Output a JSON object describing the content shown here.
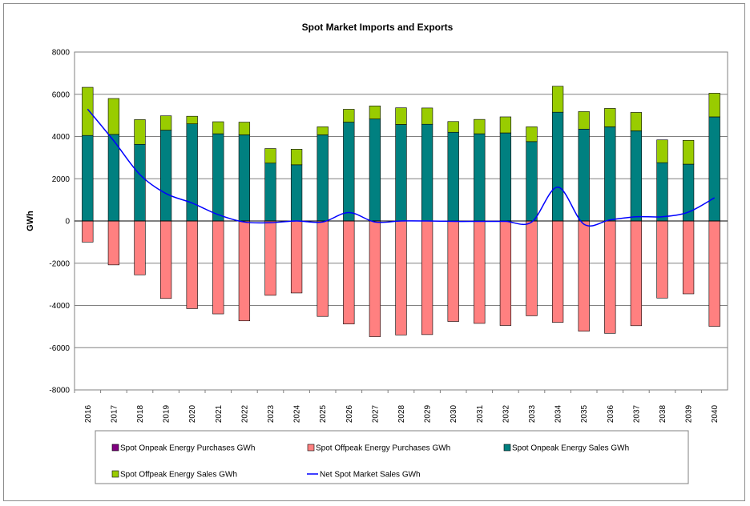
{
  "chart_data": {
    "type": "bar",
    "title": "Spot Market Imports and Exports",
    "xlabel": "",
    "ylabel": "GWh",
    "ylim": [
      -8000,
      8000
    ],
    "yticks": [
      8000,
      6000,
      4000,
      2000,
      0,
      -2000,
      -4000,
      -6000,
      -8000
    ],
    "grid": true,
    "legend_position": "bottom",
    "categories": [
      "2016",
      "2017",
      "2018",
      "2019",
      "2020",
      "2021",
      "2022",
      "2023",
      "2024",
      "2025",
      "2026",
      "2027",
      "2028",
      "2029",
      "2030",
      "2031",
      "2032",
      "2033",
      "2034",
      "2035",
      "2036",
      "2037",
      "2038",
      "2039",
      "2040"
    ],
    "series": [
      {
        "name": "Spot Onpeak Energy Purchases GWh",
        "kind": "bar",
        "color": "#800080",
        "values": [
          0,
          0,
          0,
          0,
          0,
          0,
          0,
          0,
          0,
          0,
          0,
          0,
          0,
          0,
          0,
          0,
          0,
          0,
          0,
          0,
          0,
          0,
          0,
          0,
          0
        ]
      },
      {
        "name": "Spot Offpeak Energy Purchases GWh",
        "kind": "bar",
        "color": "#ff8080",
        "values": [
          -1000,
          -2080,
          -2550,
          -3670,
          -4150,
          -4400,
          -4730,
          -3520,
          -3410,
          -4520,
          -4880,
          -5480,
          -5400,
          -5380,
          -4760,
          -4850,
          -4950,
          -4490,
          -4800,
          -5220,
          -5320,
          -4960,
          -3650,
          -3450,
          -4990
        ]
      },
      {
        "name": "Spot Onpeak Energy Sales GWh",
        "kind": "bar",
        "color": "#008080",
        "values": [
          4050,
          4100,
          3630,
          4300,
          4600,
          4130,
          4080,
          2740,
          2660,
          4080,
          4680,
          4830,
          4570,
          4580,
          4200,
          4130,
          4170,
          3760,
          5150,
          4350,
          4460,
          4270,
          2760,
          2690,
          4930
        ]
      },
      {
        "name": "Spot Offpeak Energy Sales GWh",
        "kind": "bar",
        "color": "#99cc00",
        "values": [
          2280,
          1700,
          1170,
          680,
          360,
          570,
          600,
          690,
          740,
          380,
          610,
          620,
          790,
          770,
          510,
          680,
          760,
          700,
          1230,
          830,
          870,
          870,
          1080,
          1130,
          1120
        ]
      },
      {
        "name": "Net Spot Market Sales GWh",
        "kind": "line",
        "color": "#0000ff",
        "values": [
          5300,
          3800,
          2200,
          1300,
          850,
          300,
          -50,
          -80,
          0,
          -50,
          400,
          -50,
          0,
          0,
          -20,
          -20,
          -20,
          -50,
          1600,
          -150,
          50,
          200,
          200,
          420,
          1100
        ]
      }
    ]
  }
}
